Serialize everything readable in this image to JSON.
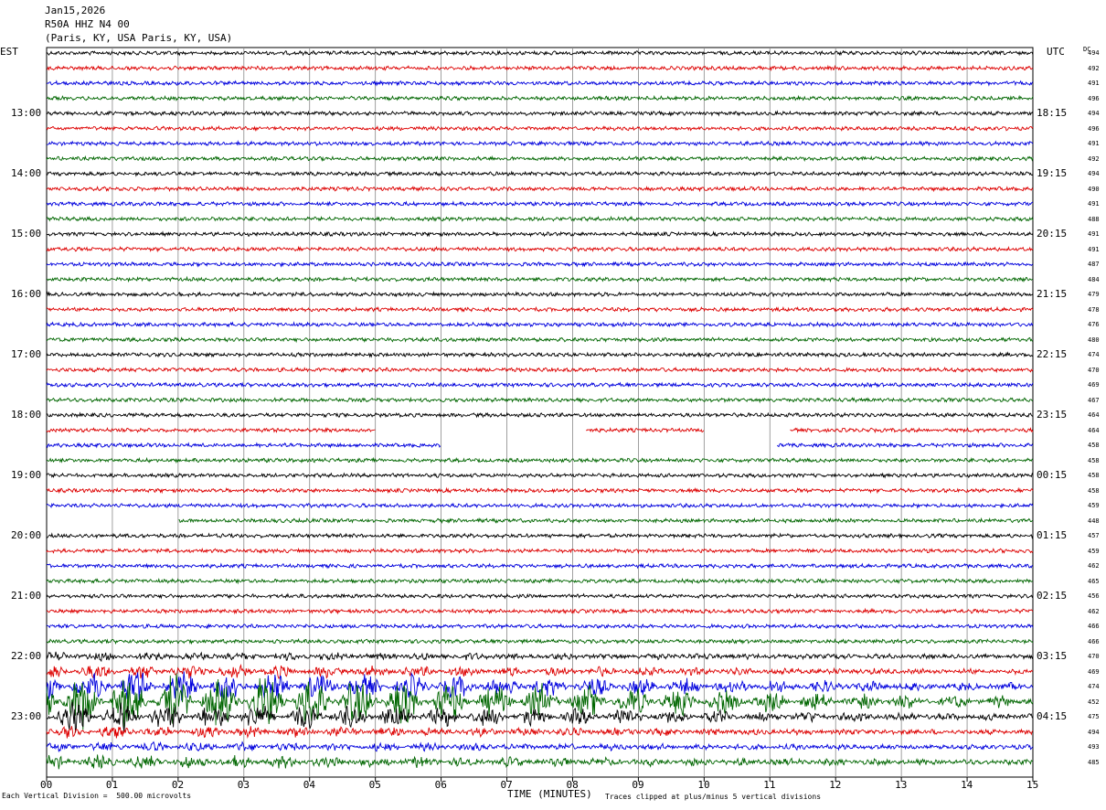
{
  "header": {
    "date": "Jan15,2026",
    "station": "R50A HHZ N4 00",
    "location": "(Paris, KY, USA Paris, KY, USA)"
  },
  "left_tz": "EST",
  "right_tz": "UTC",
  "dc_header": "DC",
  "footer": {
    "scale": "Each Vertical Division =  500.00 microvolts",
    "xlabel": "TIME (MINUTES)",
    "clip_note": "Traces clipped at plus/minus 5 vertical divisions"
  },
  "chart_data": {
    "type": "line",
    "title": "R50A HHZ N4 00",
    "xlabel": "TIME (MINUTES)",
    "xlim": [
      0,
      15
    ],
    "x_ticks": [
      "00",
      "01",
      "02",
      "03",
      "04",
      "05",
      "06",
      "07",
      "08",
      "09",
      "10",
      "11",
      "12",
      "13",
      "14",
      "15"
    ],
    "trace_colors": [
      "#000000",
      "#dd0000",
      "#0000dd",
      "#006600"
    ],
    "left_hour_labels": [
      "13:00",
      "14:00",
      "15:00",
      "16:00",
      "17:00",
      "18:00",
      "19:00",
      "20:00",
      "21:00",
      "22:00",
      "23:00"
    ],
    "right_hour_labels": [
      "18:15",
      "19:15",
      "20:15",
      "21:15",
      "22:15",
      "23:15",
      "00:15",
      "01:15",
      "02:15",
      "03:15",
      "04:15"
    ],
    "dc_offsets": [
      494,
      492,
      491,
      496,
      494,
      496,
      491,
      492,
      494,
      490,
      491,
      488,
      491,
      491,
      487,
      484,
      479,
      478,
      476,
      480,
      474,
      470,
      469,
      467,
      464,
      464,
      458,
      458,
      458,
      458,
      459,
      448,
      457,
      459,
      462,
      465,
      456,
      462,
      466,
      466,
      470,
      469,
      474,
      452,
      475,
      494,
      493,
      485
    ],
    "gaps": [
      {
        "trace": 25,
        "from_min": 5.0,
        "to_min": 8.2
      },
      {
        "trace": 25,
        "from_min": 10.0,
        "to_min": 11.3
      },
      {
        "trace": 26,
        "from_min": 6.0,
        "to_min": 11.1
      },
      {
        "trace": 31,
        "from_min": 0.0,
        "to_min": 2.0
      }
    ],
    "event_start_trace": 40,
    "event_start_min": 0.0
  }
}
